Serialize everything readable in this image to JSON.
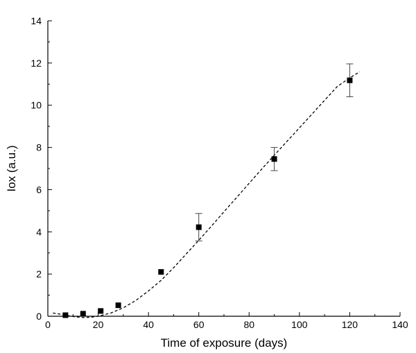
{
  "chart_data": {
    "type": "scatter",
    "title": "",
    "xlabel": "Time of exposure (days)",
    "ylabel": "Iox (a.u.)",
    "xlim": [
      0,
      140
    ],
    "ylim": [
      0,
      14
    ],
    "xticks": [
      0,
      20,
      40,
      60,
      80,
      100,
      120,
      140
    ],
    "yticks": [
      0,
      2,
      4,
      6,
      8,
      10,
      12,
      14
    ],
    "grid": false,
    "legend": "none",
    "series": [
      {
        "kind": "points",
        "marker": "square",
        "color": "#000000",
        "x": [
          7,
          14,
          21,
          28,
          45,
          60,
          90,
          120
        ],
        "y": [
          0.05,
          0.12,
          0.25,
          0.52,
          2.1,
          4.22,
          7.45,
          11.18
        ],
        "error": [
          0,
          0,
          0,
          0,
          0,
          0.65,
          0.55,
          0.78
        ]
      },
      {
        "kind": "fit",
        "style": "dashed",
        "color": "#000000",
        "x": [
          2,
          5,
          8,
          11,
          14,
          17,
          20,
          25,
          30,
          35,
          40,
          45,
          50,
          55,
          60,
          65,
          70,
          75,
          80,
          85,
          90,
          95,
          100,
          105,
          110,
          115,
          120,
          124
        ],
        "y": [
          0.15,
          0.1,
          0.03,
          -0.03,
          -0.06,
          -0.05,
          0.0,
          0.15,
          0.4,
          0.75,
          1.2,
          1.7,
          2.3,
          2.95,
          3.6,
          4.27,
          4.95,
          5.62,
          6.3,
          6.97,
          7.63,
          8.28,
          8.93,
          9.58,
          10.23,
          10.88,
          11.3,
          11.58
        ]
      }
    ]
  }
}
